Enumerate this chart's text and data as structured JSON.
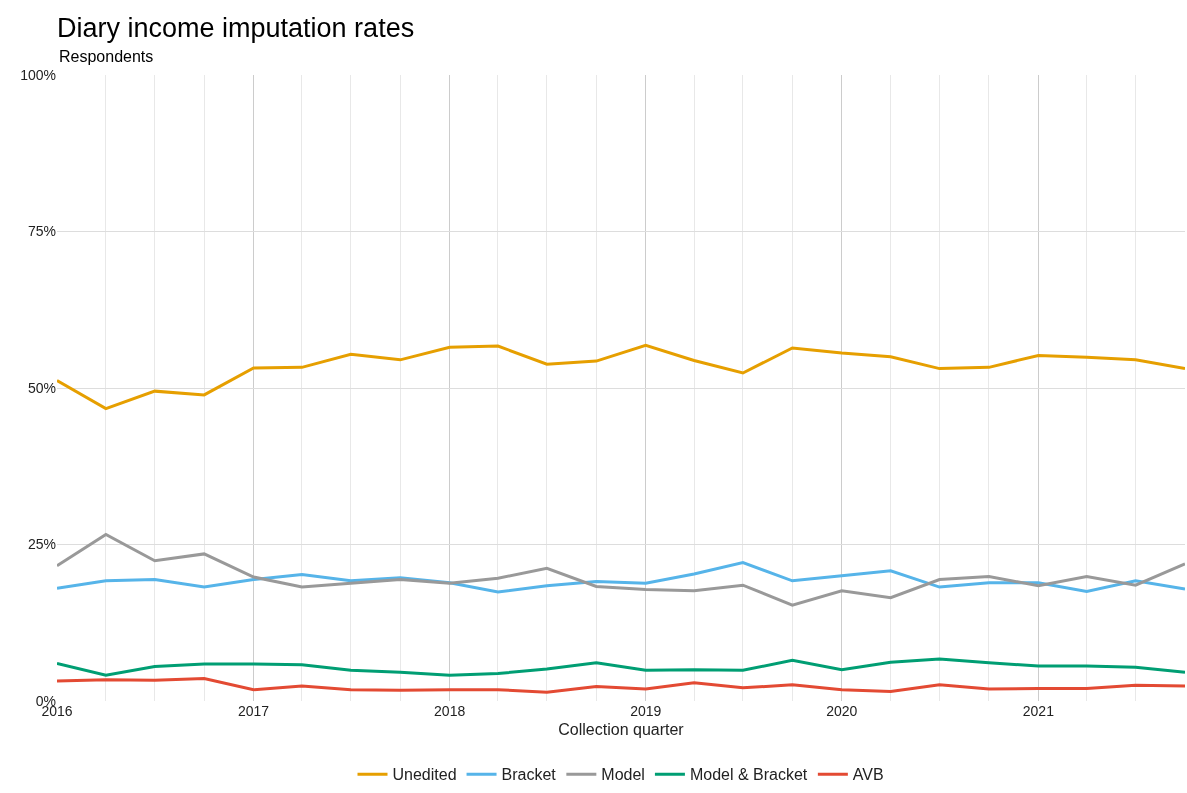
{
  "chart_data": {
    "type": "line",
    "title": "Diary income imputation rates",
    "subtitle": "Respondents",
    "xlabel": "Collection quarter",
    "x": [
      "2016-01-01",
      "2016-04-01",
      "2016-07-01",
      "2016-10-01",
      "2017-01-01",
      "2017-04-01",
      "2017-07-01",
      "2017-10-01",
      "2018-01-01",
      "2018-04-01",
      "2018-07-01",
      "2018-10-01",
      "2019-01-01",
      "2019-04-01",
      "2019-07-01",
      "2019-10-01",
      "2020-01-01",
      "2020-04-01",
      "2020-07-01",
      "2020-10-01",
      "2021-01-01",
      "2021-04-01",
      "2021-07-01",
      "2021-10-01"
    ],
    "series": [
      {
        "name": "Unedited",
        "color": "#e69f00",
        "values": [
          51.2,
          46.7,
          49.5,
          48.9,
          53.2,
          53.3,
          55.4,
          54.5,
          56.5,
          56.7,
          53.8,
          54.3,
          56.8,
          54.4,
          52.4,
          56.4,
          55.6,
          55.0,
          53.1,
          53.3,
          55.2,
          54.9,
          54.5,
          53.1
        ]
      },
      {
        "name": "Bracket",
        "color": "#56b4e9",
        "values": [
          18.0,
          19.2,
          19.4,
          18.2,
          19.4,
          20.2,
          19.2,
          19.7,
          18.9,
          17.4,
          18.4,
          19.1,
          18.8,
          20.3,
          22.1,
          19.2,
          20.0,
          20.8,
          18.2,
          18.9,
          18.9,
          17.5,
          19.2,
          17.9
        ]
      },
      {
        "name": "Model",
        "color": "#999999",
        "values": [
          21.6,
          26.6,
          22.4,
          23.5,
          19.8,
          18.2,
          18.8,
          19.4,
          18.8,
          19.6,
          21.2,
          18.3,
          17.8,
          17.6,
          18.5,
          15.3,
          17.6,
          16.5,
          19.4,
          19.9,
          18.4,
          19.9,
          18.5,
          21.9
        ]
      },
      {
        "name": "Model & Bracket",
        "color": "#009e73",
        "values": [
          6.0,
          4.1,
          5.5,
          5.9,
          5.9,
          5.8,
          4.9,
          4.6,
          4.1,
          4.4,
          5.1,
          6.1,
          4.9,
          5.0,
          4.9,
          6.5,
          5.0,
          6.2,
          6.7,
          6.1,
          5.6,
          5.6,
          5.4,
          4.6
        ]
      },
      {
        "name": "AVB",
        "color": "#e34a33",
        "values": [
          3.2,
          3.4,
          3.3,
          3.6,
          1.8,
          2.4,
          1.8,
          1.7,
          1.8,
          1.8,
          1.4,
          2.3,
          1.9,
          2.9,
          2.1,
          2.6,
          1.8,
          1.5,
          2.6,
          1.9,
          2.0,
          2.0,
          2.5,
          2.4
        ]
      }
    ],
    "xlim": [
      "2016-01-01",
      "2021-10-01"
    ],
    "xticks": [
      {
        "value": "2016-01-01",
        "label": "2016"
      },
      {
        "value": "2017-01-01",
        "label": "2017"
      },
      {
        "value": "2018-01-01",
        "label": "2018"
      },
      {
        "value": "2019-01-01",
        "label": "2019"
      },
      {
        "value": "2020-01-01",
        "label": "2020"
      },
      {
        "value": "2021-01-01",
        "label": "2021"
      }
    ],
    "ylim": [
      0,
      100
    ],
    "yticks": [
      {
        "value": 0,
        "label": "0%"
      },
      {
        "value": 25,
        "label": "25%"
      },
      {
        "value": 50,
        "label": "50%"
      },
      {
        "value": 75,
        "label": "75%"
      },
      {
        "value": 100,
        "label": "100%"
      }
    ],
    "grid": true,
    "legend": "bottom",
    "line_style": "solid"
  }
}
